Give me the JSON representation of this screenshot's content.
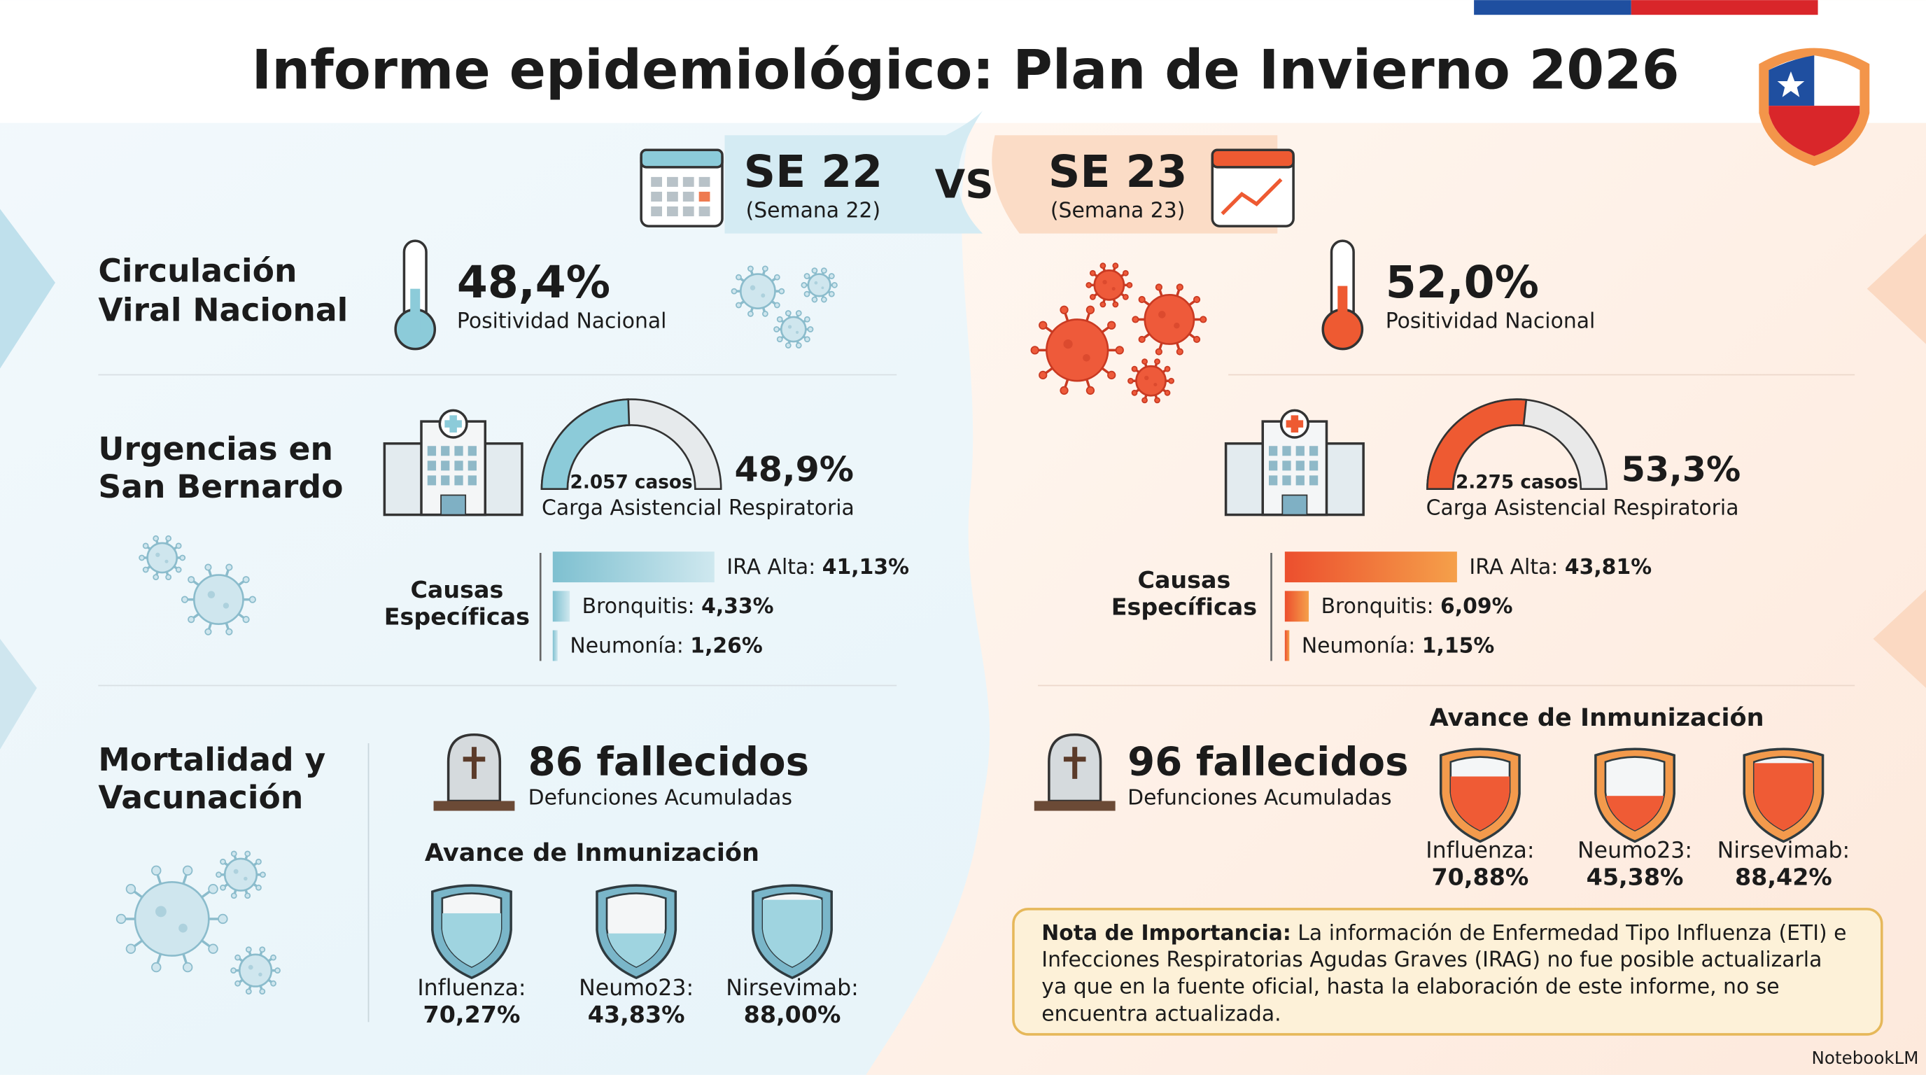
{
  "header": {
    "title": "Informe epidemiológico: Plan de Invierno 2026"
  },
  "vs": "VS",
  "sections": [
    {
      "lines": [
        "Circulación",
        "Viral Nacional"
      ]
    },
    {
      "lines": [
        "Urgencias en",
        "San Bernardo"
      ]
    },
    {
      "lines": [
        "Mortalidad y",
        "Vacunación"
      ]
    }
  ],
  "weeks": [
    {
      "code": "SE 22",
      "subtitle": "(Semana 22)",
      "positivity": {
        "value": 48.4,
        "label": "48,4%",
        "caption": "Positividad Nacional"
      },
      "urgencias": {
        "cases": "2.057 casos",
        "value": 48.9,
        "label": "48,9%",
        "caption": "Carga Asistencial Respiratoria"
      },
      "causes_title": [
        "Causas",
        "Específicas"
      ],
      "causes": [
        {
          "name": "IRA Alta:",
          "value": 41.13,
          "label": "41,13%"
        },
        {
          "name": "Bronquitis:",
          "value": 4.33,
          "label": "4,33%"
        },
        {
          "name": "Neumonía:",
          "value": 1.26,
          "label": "1,26%"
        }
      ],
      "deaths": {
        "label": "86 fallecidos",
        "caption": "Defunciones Acumuladas"
      },
      "immunization": {
        "title": "Avance de Inmunización",
        "items": [
          {
            "name": "Influenza:",
            "value": 70.27,
            "label": "70,27%"
          },
          {
            "name": "Neumo23:",
            "value": 43.83,
            "label": "43,83%"
          },
          {
            "name": "Nirsevimab:",
            "value": 88.0,
            "label": "88,00%"
          }
        ]
      }
    },
    {
      "code": "SE 23",
      "subtitle": "(Semana 23)",
      "positivity": {
        "value": 52.0,
        "label": "52,0%",
        "caption": "Positividad Nacional"
      },
      "urgencias": {
        "cases": "2.275 casos",
        "value": 53.3,
        "label": "53,3%",
        "caption": "Carga Asistencial Respiratoria"
      },
      "causes_title": [
        "Causas",
        "Específicas"
      ],
      "causes": [
        {
          "name": "IRA Alta:",
          "value": 43.81,
          "label": "43,81%"
        },
        {
          "name": "Bronquitis:",
          "value": 6.09,
          "label": "6,09%"
        },
        {
          "name": "Neumonía:",
          "value": 1.15,
          "label": "1,15%"
        }
      ],
      "deaths": {
        "label": "96 fallecidos",
        "caption": "Defunciones Acumuladas"
      },
      "immunization": {
        "title": "Avance de Inmunización",
        "items": [
          {
            "name": "Influenza:",
            "value": 70.88,
            "label": "70,88%"
          },
          {
            "name": "Neumo23:",
            "value": 45.38,
            "label": "45,38%"
          },
          {
            "name": "Nirsevimab:",
            "value": 88.42,
            "label": "88,42%"
          }
        ]
      }
    }
  ],
  "note": {
    "lead": "Nota de Importancia:",
    "lines": [
      "La información de Enfermedad Tipo Influenza (ETI) e",
      "Infecciones Respiratorias Agudas Graves (IRAG) no fue posible actualizarla",
      "ya que en la fuente oficial, hasta la elaboración de este informe, no se",
      "encuentra actualizada."
    ]
  },
  "brand": "NotebookLM"
}
